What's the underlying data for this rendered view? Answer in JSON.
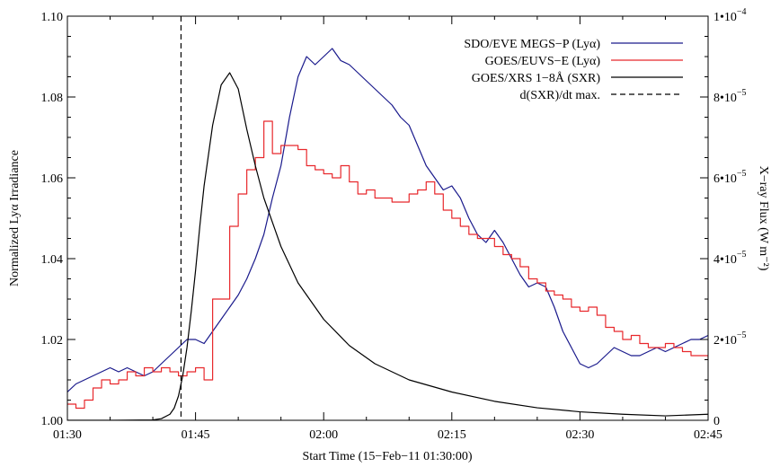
{
  "chart_data": {
    "type": "line",
    "xlabel": "Start Time (15−Feb−11 01:30:00)",
    "ylabel_left": "Normalized Lyα Irradiance",
    "ylabel_right": "X−ray Flux (W m⁻²)",
    "xlim": [
      0,
      75
    ],
    "ylim_left": [
      1.0,
      1.1
    ],
    "ylim_right": [
      0,
      0.0001
    ],
    "x_ticks": [
      {
        "value": 0,
        "label": "01:30"
      },
      {
        "value": 15,
        "label": "01:45"
      },
      {
        "value": 30,
        "label": "02:00"
      },
      {
        "value": 45,
        "label": "02:15"
      },
      {
        "value": 60,
        "label": "02:30"
      },
      {
        "value": 75,
        "label": "02:45"
      }
    ],
    "y_ticks_left": [
      {
        "value": 1.0,
        "label": "1.00"
      },
      {
        "value": 1.02,
        "label": "1.02"
      },
      {
        "value": 1.04,
        "label": "1.04"
      },
      {
        "value": 1.06,
        "label": "1.06"
      },
      {
        "value": 1.08,
        "label": "1.08"
      },
      {
        "value": 1.1,
        "label": "1.10"
      }
    ],
    "y_ticks_right": [
      {
        "value": 0,
        "base": "0",
        "exp": ""
      },
      {
        "value": 2e-05,
        "base": "2•10",
        "exp": "−5"
      },
      {
        "value": 4e-05,
        "base": "4•10",
        "exp": "−5"
      },
      {
        "value": 6e-05,
        "base": "6•10",
        "exp": "−5"
      },
      {
        "value": 8e-05,
        "base": "8•10",
        "exp": "−5"
      },
      {
        "value": 0.0001,
        "base": "1•10",
        "exp": "−4"
      }
    ],
    "legend_position": "top-right",
    "vline": {
      "name": "d(SXR)/dt max.",
      "x": 13.3,
      "color": "#000000",
      "style": "dashed"
    },
    "series": [
      {
        "name": "SDO/EVE MEGS−P (Lyα)",
        "color": "#1a1a8c",
        "axis": "left",
        "x": [
          0,
          1,
          2,
          3,
          4,
          5,
          6,
          7,
          8,
          9,
          10,
          11,
          12,
          13,
          14,
          15,
          16,
          17,
          18,
          19,
          20,
          21,
          22,
          23,
          24,
          25,
          26,
          27,
          28,
          29,
          30,
          31,
          32,
          33,
          34,
          35,
          36,
          37,
          38,
          39,
          40,
          41,
          42,
          43,
          44,
          45,
          46,
          47,
          48,
          49,
          50,
          51,
          52,
          53,
          54,
          55,
          56,
          57,
          58,
          59,
          60,
          61,
          62,
          63,
          64,
          65,
          66,
          67,
          68,
          69,
          70,
          71,
          72,
          73,
          74,
          75
        ],
        "values": [
          1.007,
          1.009,
          1.01,
          1.011,
          1.012,
          1.013,
          1.012,
          1.013,
          1.012,
          1.011,
          1.012,
          1.014,
          1.016,
          1.018,
          1.02,
          1.02,
          1.019,
          1.022,
          1.025,
          1.028,
          1.031,
          1.035,
          1.04,
          1.046,
          1.055,
          1.063,
          1.075,
          1.085,
          1.09,
          1.088,
          1.09,
          1.092,
          1.089,
          1.088,
          1.086,
          1.084,
          1.082,
          1.08,
          1.078,
          1.075,
          1.073,
          1.068,
          1.063,
          1.06,
          1.057,
          1.058,
          1.055,
          1.05,
          1.046,
          1.044,
          1.047,
          1.044,
          1.04,
          1.036,
          1.033,
          1.034,
          1.033,
          1.028,
          1.022,
          1.018,
          1.014,
          1.013,
          1.014,
          1.016,
          1.018,
          1.017,
          1.016,
          1.016,
          1.017,
          1.018,
          1.017,
          1.018,
          1.019,
          1.02,
          1.02,
          1.021
        ]
      },
      {
        "name": "GOES/EUVS−E (Lyα)",
        "color": "#e8282c",
        "axis": "left",
        "step": true,
        "x": [
          0,
          1,
          2,
          3,
          4,
          5,
          6,
          7,
          8,
          9,
          10,
          11,
          12,
          13,
          14,
          15,
          16,
          17,
          18,
          19,
          20,
          21,
          22,
          23,
          24,
          25,
          26,
          27,
          28,
          29,
          30,
          31,
          32,
          33,
          34,
          35,
          36,
          37,
          38,
          39,
          40,
          41,
          42,
          43,
          44,
          45,
          46,
          47,
          48,
          49,
          50,
          51,
          52,
          53,
          54,
          55,
          56,
          57,
          58,
          59,
          60,
          61,
          62,
          63,
          64,
          65,
          66,
          67,
          68,
          69,
          70,
          71,
          72,
          73,
          74,
          75
        ],
        "values": [
          1.004,
          1.003,
          1.005,
          1.008,
          1.01,
          1.009,
          1.01,
          1.012,
          1.011,
          1.013,
          1.012,
          1.013,
          1.012,
          1.011,
          1.012,
          1.013,
          1.01,
          1.03,
          1.03,
          1.048,
          1.056,
          1.062,
          1.065,
          1.074,
          1.066,
          1.068,
          1.068,
          1.067,
          1.063,
          1.062,
          1.061,
          1.06,
          1.063,
          1.059,
          1.056,
          1.057,
          1.055,
          1.055,
          1.054,
          1.054,
          1.056,
          1.057,
          1.059,
          1.056,
          1.052,
          1.05,
          1.048,
          1.046,
          1.045,
          1.045,
          1.043,
          1.041,
          1.04,
          1.038,
          1.035,
          1.034,
          1.032,
          1.031,
          1.03,
          1.028,
          1.027,
          1.028,
          1.026,
          1.023,
          1.022,
          1.02,
          1.021,
          1.019,
          1.018,
          1.018,
          1.019,
          1.018,
          1.017,
          1.016,
          1.016,
          1.015
        ]
      },
      {
        "name": "GOES/XRS 1−8Å (SXR)",
        "color": "#000000",
        "axis": "right",
        "x": [
          0,
          5,
          10,
          11,
          12,
          12.5,
          13,
          13.5,
          14,
          14.5,
          15,
          15.5,
          16,
          17,
          18,
          19,
          20,
          21,
          22,
          23,
          25,
          27,
          30,
          33,
          36,
          40,
          45,
          50,
          55,
          60,
          65,
          70,
          75
        ],
        "values": [
          0.0,
          0.0,
          1e-07,
          4e-07,
          1.5e-06,
          3e-06,
          6e-06,
          1.1e-05,
          1.8e-05,
          2.7e-05,
          3.7e-05,
          4.8e-05,
          5.8e-05,
          7.3e-05,
          8.3e-05,
          8.6e-05,
          8.2e-05,
          7.2e-05,
          6.3e-05,
          5.5e-05,
          4.3e-05,
          3.4e-05,
          2.5e-05,
          1.85e-05,
          1.4e-05,
          1e-05,
          7e-06,
          4.7e-06,
          3.1e-06,
          2.1e-06,
          1.5e-06,
          1.1e-06,
          1.5e-06
        ]
      }
    ]
  }
}
